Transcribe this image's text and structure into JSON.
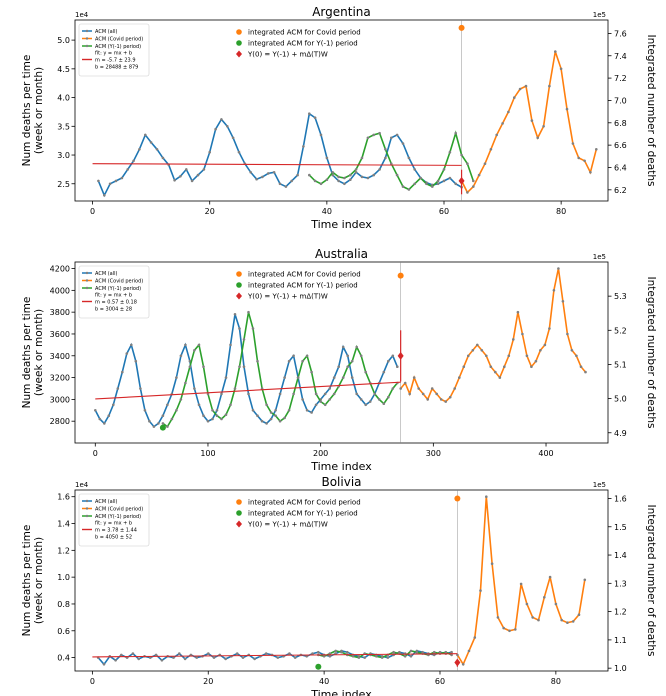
{
  "chart_data": [
    {
      "type": "line",
      "title": "Argentina",
      "xlabel": "Time index",
      "ylabel": "Num deaths per time\n(week or month)",
      "ylabel2": "Integrated number of deaths",
      "left_exponent": "1e4",
      "right_exponent": "1e5",
      "xlim": [
        -3,
        88
      ],
      "ylim": [
        2.2,
        5.35
      ],
      "y2lim": [
        6.1,
        7.72
      ],
      "xticks": [
        0,
        20,
        40,
        60,
        80
      ],
      "yticks": [
        2.5,
        3.0,
        3.5,
        4.0,
        4.5,
        5.0
      ],
      "yticklabels": [
        "2.5",
        "3.0",
        "3.5",
        "4.0",
        "4.5",
        "5.0"
      ],
      "y2ticks": [
        6.2,
        6.4,
        6.6,
        6.8,
        7.0,
        7.2,
        7.4,
        7.6
      ],
      "y2ticklabels": [
        "6.2",
        "6.4",
        "6.6",
        "6.8",
        "7.0",
        "7.2",
        "7.4",
        "7.6"
      ],
      "legend": [
        "ACM (all)",
        "ACM (Covid period)",
        "ACM (Y(-1) period)",
        "fit: y = mx + b",
        "m = -5.7 ± 23.9",
        "b = 28488 ± 879"
      ],
      "legend2": [
        "integrated ACM for Covid period",
        "integrated ACM for Y(-1) period",
        "Y(0) = Y(-1) + mΔ(T)W"
      ],
      "vline_x": 63,
      "series": [
        {
          "name": "ACM (all)",
          "x_start": 1,
          "values": [
            2.55,
            2.3,
            2.5,
            2.55,
            2.6,
            2.75,
            2.9,
            3.1,
            3.35,
            3.22,
            3.1,
            2.95,
            2.83,
            2.56,
            2.63,
            2.75,
            2.55,
            2.65,
            2.75,
            3.05,
            3.45,
            3.62,
            3.5,
            3.3,
            3.05,
            2.85,
            2.7,
            2.58,
            2.62,
            2.68,
            2.7,
            2.5,
            2.45,
            2.55,
            2.65,
            3.15,
            3.72,
            3.65,
            3.35,
            2.95,
            2.65,
            2.55,
            2.5,
            2.57,
            2.7,
            2.62,
            2.6,
            2.65,
            2.75,
            2.95,
            3.3,
            3.35,
            3.2,
            2.95,
            2.75,
            2.6,
            2.52,
            2.48,
            2.5,
            2.55,
            2.6,
            2.5,
            2.44
          ]
        },
        {
          "name": "ACM (Y(-1) period)",
          "x_start": 37,
          "values": [
            2.65,
            2.55,
            2.5,
            2.57,
            2.7,
            2.62,
            2.6,
            2.65,
            2.75,
            2.95,
            3.3,
            3.35,
            3.38,
            3.1,
            2.85,
            2.65,
            2.45,
            2.4,
            2.5,
            2.6,
            2.5,
            2.45,
            2.55,
            2.75,
            3.05,
            3.38,
            3.0,
            2.85,
            2.55
          ]
        },
        {
          "name": "ACM (Covid period)",
          "x_start": 63,
          "values": [
            2.55,
            2.35,
            2.45,
            2.65,
            2.85,
            3.1,
            3.35,
            3.55,
            3.75,
            4.0,
            4.15,
            4.2,
            3.6,
            3.3,
            3.5,
            4.2,
            4.8,
            4.5,
            3.8,
            3.2,
            2.95,
            2.9,
            2.7,
            3.1
          ]
        }
      ],
      "fit": {
        "x": [
          0,
          63
        ],
        "y": [
          2.85,
          2.82
        ]
      },
      "integrated_covid": {
        "x": 63,
        "y2": 7.65
      },
      "integrated_y_minus_1": null,
      "y0_point": {
        "x": 63,
        "y2": 6.28
      },
      "y0_errorbar": [
        6.16,
        6.38
      ]
    },
    {
      "type": "line",
      "title": "Australia",
      "xlabel": "Time index",
      "ylabel": "Num deaths per time\n(week or month)",
      "ylabel2": "Integrated number of deaths",
      "left_exponent": "",
      "right_exponent": "1e5",
      "xlim": [
        -18,
        455
      ],
      "ylim": [
        2600,
        4260
      ],
      "y2lim": [
        4.87,
        5.4
      ],
      "xticks": [
        0,
        100,
        200,
        300,
        400
      ],
      "yticks": [
        2800,
        3000,
        3200,
        3400,
        3600,
        3800,
        4000,
        4200
      ],
      "yticklabels": [
        "2800",
        "3000",
        "3200",
        "3400",
        "3600",
        "3800",
        "4000",
        "4200"
      ],
      "y2ticks": [
        4.9,
        5.0,
        5.1,
        5.2,
        5.3
      ],
      "y2ticklabels": [
        "4.9",
        "5.0",
        "5.1",
        "5.2",
        "5.3"
      ],
      "legend": [
        "ACM (all)",
        "ACM (Covid period)",
        "ACM (Y(-1) period)",
        "fit: y = mx + b",
        "m = 0.57 ± 0.18",
        "b = 3004 ± 28"
      ],
      "legend2": [
        "integrated ACM for Covid period",
        "integrated ACM for Y(-1) period",
        "Y(0) = Y(-1) + mΔ(T)W"
      ],
      "vline_x": 271,
      "series": [
        {
          "name": "ACM (all)",
          "x_start": 0,
          "x_step": 4,
          "values": [
            2900,
            2820,
            2780,
            2850,
            2950,
            3100,
            3250,
            3420,
            3500,
            3350,
            3100,
            2900,
            2800,
            2750,
            2780,
            2850,
            2950,
            3050,
            3200,
            3400,
            3500,
            3350,
            3100,
            2950,
            2850,
            2800,
            2820,
            2900,
            3050,
            3200,
            3500,
            3780,
            3650,
            3300,
            3050,
            2900,
            2850,
            2800,
            2780,
            2820,
            2900,
            3050,
            3200,
            3350,
            3400,
            3200,
            3000,
            2900,
            2880,
            2950,
            3000,
            3050,
            3100,
            3200,
            3300,
            3480,
            3400,
            3200,
            3050,
            3000,
            2950,
            2980,
            3050,
            3150,
            3250,
            3350,
            3400,
            3300
          ]
        },
        {
          "name": "ACM (Y(-1) period)",
          "x_start": 60,
          "x_step": 4,
          "values": [
            2780,
            2750,
            2820,
            2900,
            3000,
            3150,
            3300,
            3450,
            3500,
            3300,
            3050,
            2900,
            2850,
            2820,
            2860,
            2950,
            3100,
            3300,
            3550,
            3800,
            3650,
            3350,
            3100,
            2950,
            2880,
            2850,
            2800,
            2830,
            2900,
            3050,
            3200,
            3350,
            3400,
            3250,
            3050,
            2980,
            2950,
            3000,
            3050,
            3120,
            3200,
            3300,
            3350,
            3480,
            3400,
            3250,
            3150,
            3050,
            3000,
            2960,
            3020,
            3100,
            3150
          ]
        },
        {
          "name": "ACM (Covid period)",
          "x_start": 271,
          "x_step": 4,
          "values": [
            3100,
            3150,
            3050,
            3200,
            3100,
            3050,
            3000,
            3100,
            3050,
            3000,
            2980,
            3020,
            3100,
            3200,
            3300,
            3400,
            3450,
            3500,
            3450,
            3400,
            3300,
            3250,
            3200,
            3300,
            3400,
            3550,
            3800,
            3600,
            3400,
            3300,
            3350,
            3450,
            3500,
            3650,
            4000,
            4200,
            3900,
            3600,
            3450,
            3400,
            3300,
            3250
          ]
        }
      ],
      "fit": {
        "x": [
          0,
          271
        ],
        "y": [
          3004,
          3158
        ]
      },
      "integrated_covid": {
        "x": 271,
        "y2": 5.36
      },
      "integrated_y_minus_1": {
        "x": 60,
        "y2": 4.915
      },
      "y0_point": {
        "x": 271,
        "y2": 5.125
      },
      "y0_errorbar": [
        5.05,
        5.2
      ]
    },
    {
      "type": "line",
      "title": "Bolivia",
      "xlabel": "Time index",
      "ylabel": "Num deaths per time\n(week or month)",
      "ylabel2": "Integrated number of deaths",
      "left_exponent": "1e4",
      "right_exponent": "1e5",
      "xlim": [
        -3,
        89
      ],
      "ylim": [
        0.3,
        1.65
      ],
      "y2lim": [
        0.99,
        1.63
      ],
      "xticks": [
        0,
        20,
        40,
        60,
        80
      ],
      "yticks": [
        0.4,
        0.6,
        0.8,
        1.0,
        1.2,
        1.4,
        1.6
      ],
      "yticklabels": [
        "0.4",
        "0.6",
        "0.8",
        "1.0",
        "1.2",
        "1.4",
        "1.6"
      ],
      "y2ticks": [
        1.0,
        1.1,
        1.2,
        1.3,
        1.4,
        1.5,
        1.6
      ],
      "y2ticklabels": [
        "1.0",
        "1.1",
        "1.2",
        "1.3",
        "1.4",
        "1.5",
        "1.6"
      ],
      "legend": [
        "ACM (all)",
        "ACM (Covid period)",
        "ACM (Y(-1) period)",
        "fit: y = mx + b",
        "m = 3.78 ± 1.44",
        "b = 4050 ± 52"
      ],
      "legend2": [
        "integrated ACM for Covid period",
        "integrated ACM for Y(-1) period",
        "Y(0) = Y(-1) + mΔ(T)W"
      ],
      "vline_x": 63,
      "series": [
        {
          "name": "ACM (all)",
          "x_start": 1,
          "values": [
            0.4,
            0.35,
            0.41,
            0.38,
            0.42,
            0.4,
            0.43,
            0.39,
            0.41,
            0.4,
            0.42,
            0.38,
            0.41,
            0.4,
            0.43,
            0.39,
            0.42,
            0.4,
            0.41,
            0.43,
            0.4,
            0.42,
            0.39,
            0.41,
            0.43,
            0.4,
            0.42,
            0.39,
            0.41,
            0.43,
            0.42,
            0.4,
            0.41,
            0.43,
            0.4,
            0.42,
            0.41,
            0.43,
            0.44,
            0.42,
            0.41,
            0.43,
            0.45,
            0.44,
            0.42,
            0.41,
            0.4,
            0.43,
            0.42,
            0.41,
            0.4,
            0.42,
            0.44,
            0.43,
            0.41,
            0.45,
            0.44,
            0.43,
            0.42,
            0.44,
            0.43,
            0.44
          ]
        },
        {
          "name": "ACM (Y(-1) period)",
          "x_start": 39,
          "values": [
            0.42,
            0.41,
            0.43,
            0.45,
            0.44,
            0.42,
            0.41,
            0.4,
            0.43,
            0.42,
            0.41,
            0.4,
            0.42,
            0.44,
            0.43,
            0.41,
            0.45,
            0.44,
            0.43,
            0.42,
            0.44,
            0.43,
            0.44,
            0.42
          ]
        },
        {
          "name": "ACM (Covid period)",
          "x_start": 63,
          "values": [
            0.42,
            0.35,
            0.45,
            0.55,
            0.9,
            1.6,
            1.1,
            0.7,
            0.62,
            0.6,
            0.61,
            0.95,
            0.8,
            0.7,
            0.68,
            0.85,
            1.0,
            0.8,
            0.68,
            0.66,
            0.67,
            0.72,
            0.98
          ]
        }
      ],
      "fit": {
        "x": [
          0,
          63
        ],
        "y": [
          0.405,
          0.429
        ]
      },
      "integrated_covid": {
        "x": 63,
        "y2": 1.6
      },
      "integrated_y_minus_1": {
        "x": 39,
        "y2": 1.005
      },
      "y0_point": {
        "x": 63,
        "y2": 1.02
      },
      "y0_errorbar": [
        1.005,
        1.03
      ]
    }
  ]
}
